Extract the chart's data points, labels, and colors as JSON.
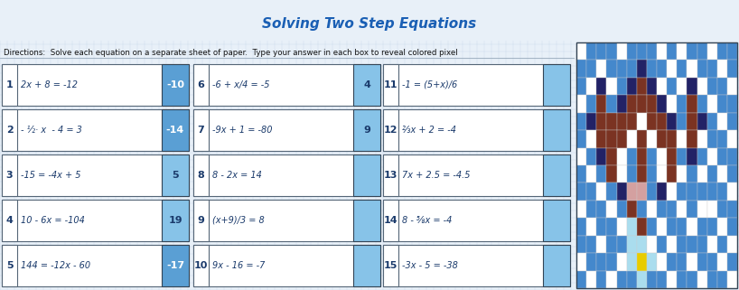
{
  "title": "Solving Two Step Equations",
  "title_color": "#1a5fb4",
  "title_bg": "#6ab0de",
  "directions": "Directions:  Solve each equation on a separate sheet of paper.  Type your answer in each box to reveal colored pixel",
  "bg_color": "#e8f0f8",
  "grid_color": "#b8cfe0",
  "answer_fill": "#87c3e8",
  "answer_fill_dark": "#5a9fd4",
  "number_color": "#1a3a6b",
  "equation_color": "#1a3a6b",
  "problems": [
    {
      "num": "1",
      "eq": "2x + 8 = -12",
      "ans": "-10",
      "ans_dark": true,
      "col": 0,
      "row": 0
    },
    {
      "num": "2",
      "eq": "- ½· x  - 4 = 3",
      "ans": "-14",
      "ans_dark": true,
      "col": 0,
      "row": 1
    },
    {
      "num": "3",
      "eq": "-15 = -4x + 5",
      "ans": "5",
      "ans_dark": false,
      "col": 0,
      "row": 2
    },
    {
      "num": "4",
      "eq": "10 - 6x = -104",
      "ans": "19",
      "ans_dark": false,
      "col": 0,
      "row": 3
    },
    {
      "num": "5",
      "eq": "144 = -12x - 60",
      "ans": "-17",
      "ans_dark": true,
      "col": 0,
      "row": 4
    },
    {
      "num": "6",
      "eq": "-6 + x/4 = -5",
      "ans": "4",
      "ans_dark": false,
      "col": 1,
      "row": 0
    },
    {
      "num": "7",
      "eq": "-9x + 1 = -80",
      "ans": "9",
      "ans_dark": false,
      "col": 1,
      "row": 1
    },
    {
      "num": "8",
      "eq": "8 - 2x = 14",
      "ans": "",
      "ans_dark": false,
      "col": 1,
      "row": 2
    },
    {
      "num": "9",
      "eq": "(x+9)/3 = 8",
      "ans": "",
      "ans_dark": false,
      "col": 1,
      "row": 3
    },
    {
      "num": "10",
      "eq": "9x - 16 = -7",
      "ans": "",
      "ans_dark": false,
      "col": 1,
      "row": 4
    },
    {
      "num": "11",
      "eq": "-1 = (5+x)/6",
      "ans": "",
      "ans_dark": false,
      "col": 2,
      "row": 0
    },
    {
      "num": "12",
      "eq": "⅔x + 2 = -4",
      "ans": "",
      "ans_dark": false,
      "col": 2,
      "row": 1
    },
    {
      "num": "13",
      "eq": "7x + 2.5 = -4.5",
      "ans": "",
      "ans_dark": false,
      "col": 2,
      "row": 2
    },
    {
      "num": "14",
      "eq": "8 - ⅝x = -4",
      "ans": "",
      "ans_dark": false,
      "col": 2,
      "row": 3
    },
    {
      "num": "15",
      "eq": "-3x - 5 = -38",
      "ans": "",
      "ans_dark": false,
      "col": 2,
      "row": 4
    }
  ],
  "pixel_art": [
    [
      "#ffffff",
      "#4488cc",
      "#4488cc",
      "#4488cc",
      "#ffffff",
      "#4488cc",
      "#4488cc",
      "#4488cc",
      "#ffffff",
      "#4488cc",
      "#ffffff",
      "#4488cc",
      "#4488cc",
      "#ffffff",
      "#4488cc",
      "#4488cc"
    ],
    [
      "#4488cc",
      "#4488cc",
      "#ffffff",
      "#4488cc",
      "#4488cc",
      "#4488cc",
      "#222266",
      "#4488cc",
      "#4488cc",
      "#ffffff",
      "#4488cc",
      "#ffffff",
      "#4488cc",
      "#4488cc",
      "#ffffff",
      "#4488cc"
    ],
    [
      "#4488cc",
      "#ffffff",
      "#222266",
      "#ffffff",
      "#4488cc",
      "#222266",
      "#7b3322",
      "#222266",
      "#ffffff",
      "#4488cc",
      "#ffffff",
      "#222266",
      "#ffffff",
      "#4488cc",
      "#4488cc",
      "#ffffff"
    ],
    [
      "#ffffff",
      "#4488cc",
      "#7b3322",
      "#4488cc",
      "#222266",
      "#7b3322",
      "#7b3322",
      "#7b3322",
      "#222266",
      "#ffffff",
      "#4488cc",
      "#7b3322",
      "#4488cc",
      "#ffffff",
      "#4488cc",
      "#4488cc"
    ],
    [
      "#4488cc",
      "#222266",
      "#7b3322",
      "#7b3322",
      "#7b3322",
      "#7b3322",
      "#ffffff",
      "#7b3322",
      "#7b3322",
      "#222266",
      "#4488cc",
      "#7b3322",
      "#222266",
      "#4488cc",
      "#ffffff",
      "#4488cc"
    ],
    [
      "#4488cc",
      "#ffffff",
      "#7b3322",
      "#7b3322",
      "#7b3322",
      "#ffffff",
      "#7b3322",
      "#ffffff",
      "#7b3322",
      "#7b3322",
      "#ffffff",
      "#7b3322",
      "#ffffff",
      "#4488cc",
      "#4488cc",
      "#ffffff"
    ],
    [
      "#ffffff",
      "#4488cc",
      "#222266",
      "#7b3322",
      "#ffffff",
      "#4488cc",
      "#7b3322",
      "#4488cc",
      "#ffffff",
      "#7b3322",
      "#4488cc",
      "#222266",
      "#4488cc",
      "#ffffff",
      "#4488cc",
      "#4488cc"
    ],
    [
      "#4488cc",
      "#ffffff",
      "#4488cc",
      "#7b3322",
      "#ffffff",
      "#4488cc",
      "#7b3322",
      "#4488cc",
      "#ffffff",
      "#7b3322",
      "#ffffff",
      "#4488cc",
      "#ffffff",
      "#4488cc",
      "#ffffff",
      "#4488cc"
    ],
    [
      "#4488cc",
      "#4488cc",
      "#ffffff",
      "#4488cc",
      "#222266",
      "#d4a0a0",
      "#d4a0a0",
      "#4488cc",
      "#222266",
      "#ffffff",
      "#4488cc",
      "#4488cc",
      "#4488cc",
      "#4488cc",
      "#4488cc",
      "#ffffff"
    ],
    [
      "#ffffff",
      "#4488cc",
      "#4488cc",
      "#ffffff",
      "#4488cc",
      "#7b3322",
      "#4488cc",
      "#ffffff",
      "#4488cc",
      "#4488cc",
      "#ffffff",
      "#4488cc",
      "#ffffff",
      "#ffffff",
      "#4488cc",
      "#4488cc"
    ],
    [
      "#4488cc",
      "#ffffff",
      "#4488cc",
      "#4488cc",
      "#ffffff",
      "#aaddee",
      "#7b3322",
      "#4488cc",
      "#ffffff",
      "#4488cc",
      "#4488cc",
      "#ffffff",
      "#4488cc",
      "#4488cc",
      "#ffffff",
      "#4488cc"
    ],
    [
      "#4488cc",
      "#4488cc",
      "#ffffff",
      "#4488cc",
      "#4488cc",
      "#aaddee",
      "#aaddee",
      "#ffffff",
      "#4488cc",
      "#ffffff",
      "#4488cc",
      "#4488cc",
      "#4488cc",
      "#ffffff",
      "#4488cc",
      "#ffffff"
    ],
    [
      "#ffffff",
      "#4488cc",
      "#4488cc",
      "#4488cc",
      "#ffffff",
      "#aaddee",
      "#e8cc00",
      "#aaddee",
      "#ffffff",
      "#4488cc",
      "#4488cc",
      "#ffffff",
      "#4488cc",
      "#4488cc",
      "#ffffff",
      "#4488cc"
    ],
    [
      "#4488cc",
      "#ffffff",
      "#4488cc",
      "#ffffff",
      "#4488cc",
      "#4488cc",
      "#aaddee",
      "#4488cc",
      "#4488cc",
      "#ffffff",
      "#4488cc",
      "#4488cc",
      "#ffffff",
      "#4488cc",
      "#4488cc",
      "#ffffff"
    ]
  ]
}
